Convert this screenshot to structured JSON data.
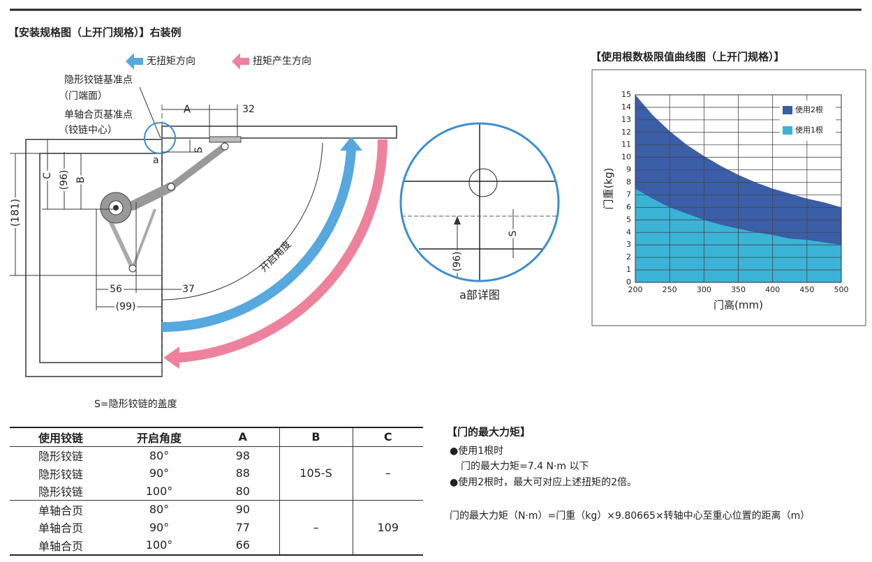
{
  "diagram": {
    "title": "【安装规格图（上开门规格）】右装例",
    "legend_no_torque": "无扭矩方向",
    "legend_torque": "扭矩产生方向",
    "hidden_ref": "隐形铰链基准点",
    "hidden_ref_sub": "（门端面）",
    "single_ref": "单轴合页基准点",
    "single_ref_sub": "（铰链中心）",
    "dim_A": "A",
    "dim_32": "32",
    "dim_S": "S",
    "dim_C": "C",
    "dim_96": "(96)",
    "dim_B": "B",
    "dim_181": "(181)",
    "dim_56": "56",
    "dim_37": "37",
    "dim_99": "(99)",
    "point_a": "a",
    "angle": "开启角度",
    "note": "S=隐形铰链的盖度"
  },
  "detail": {
    "s": "S",
    "d96": "(96)",
    "caption": "a部详图"
  },
  "chart_data": {
    "type": "area",
    "title": "【使用根数极限值曲线图（上开门规格）】",
    "xlabel": "门高(mm)",
    "ylabel": "门重(kg)",
    "x": [
      200,
      225,
      250,
      275,
      300,
      325,
      350,
      375,
      400,
      425,
      450,
      475,
      500
    ],
    "series": [
      {
        "name": "使用2根",
        "color": "#3a5ea8",
        "values": [
          15.0,
          13.4,
          12.1,
          11.0,
          10.1,
          9.3,
          8.6,
          8.0,
          7.5,
          7.1,
          6.7,
          6.4,
          6.0
        ]
      },
      {
        "name": "使用1根",
        "color": "#3ab3d6",
        "values": [
          7.5,
          6.7,
          6.0,
          5.5,
          5.0,
          4.6,
          4.3,
          4.0,
          3.8,
          3.5,
          3.4,
          3.2,
          3.0
        ]
      }
    ],
    "xlim": [
      200,
      500
    ],
    "ylim": [
      0,
      15
    ],
    "xticks": [
      200,
      250,
      300,
      350,
      400,
      450,
      500
    ],
    "yticks": [
      0,
      1,
      2,
      3,
      4,
      5,
      6,
      7,
      8,
      9,
      10,
      11,
      12,
      13,
      14,
      15
    ],
    "grid": true,
    "legend": "upper right"
  },
  "table": {
    "header": [
      "使用铰链",
      "开启角度",
      "A",
      "B",
      "C"
    ],
    "groups": [
      {
        "rows": [
          [
            "隐形铰链",
            "80°",
            "98"
          ],
          [
            "隐形铰链",
            "90°",
            "88"
          ],
          [
            "隐形铰链",
            "100°",
            "80"
          ]
        ],
        "B": "105-S",
        "C": "–"
      },
      {
        "rows": [
          [
            "单轴合页",
            "80°",
            "90"
          ],
          [
            "单轴合页",
            "90°",
            "77"
          ],
          [
            "单轴合页",
            "100°",
            "66"
          ]
        ],
        "B": "–",
        "C": "109"
      }
    ]
  },
  "torque": {
    "title": "【门的最大力矩】",
    "items": [
      "●使用1根时",
      "门的最大力矩=7.4 N·m 以下",
      "●使用2根时，最大可对应上述扭矩的2倍。"
    ],
    "formula": "门的最大力矩（N·m）=门重（kg）×9.80665×转轴中心至重心位置的距离（m）"
  }
}
